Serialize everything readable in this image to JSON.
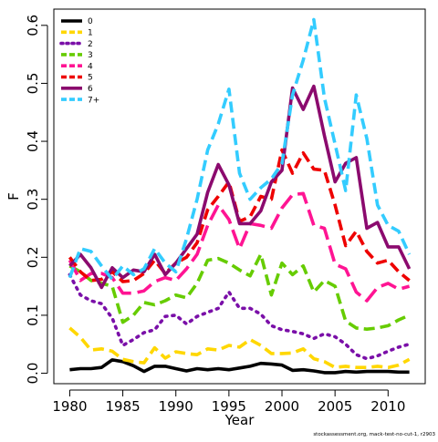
{
  "chart_data": {
    "type": "line",
    "title": "",
    "xlabel": "Year",
    "ylabel": "F",
    "xlim": [
      1978.5,
      2013.5
    ],
    "ylim": [
      -0.018,
      0.628
    ],
    "xticks": [
      1980,
      1985,
      1990,
      1995,
      2000,
      2005,
      2010
    ],
    "xtick_labels": [
      "1980",
      "1985",
      "1990",
      "1995",
      "2000",
      "2005",
      "2010"
    ],
    "yticks": [
      0.0,
      0.1,
      0.2,
      0.3,
      0.4,
      0.5,
      0.6
    ],
    "ytick_labels": [
      "0.0",
      "0.1",
      "0.2",
      "0.3",
      "0.4",
      "0.5",
      "0.6"
    ],
    "grid": false,
    "legend_position": "top-left",
    "credit": "stockassessment.org, mack-test-no-cut-1, r2903",
    "x": [
      1980,
      1981,
      1982,
      1983,
      1984,
      1985,
      1986,
      1987,
      1988,
      1989,
      1990,
      1991,
      1992,
      1993,
      1994,
      1995,
      1996,
      1997,
      1998,
      1999,
      2000,
      2001,
      2002,
      2003,
      2004,
      2005,
      2006,
      2007,
      2008,
      2009,
      2010,
      2011,
      2012
    ],
    "series": [
      {
        "name": "0",
        "color": "#000000",
        "dash": "solid",
        "values": [
          0.006,
          0.008,
          0.008,
          0.01,
          0.023,
          0.02,
          0.013,
          0.003,
          0.012,
          0.012,
          0.008,
          0.004,
          0.008,
          0.006,
          0.008,
          0.006,
          0.009,
          0.012,
          0.017,
          0.016,
          0.014,
          0.005,
          0.006,
          0.004,
          0.001,
          0.001,
          0.003,
          0.002,
          0.003,
          0.003,
          0.003,
          0.002,
          0.002
        ]
      },
      {
        "name": "1",
        "color": "#FFD700",
        "dash": "dash",
        "values": [
          0.078,
          0.062,
          0.04,
          0.042,
          0.038,
          0.024,
          0.02,
          0.018,
          0.044,
          0.026,
          0.037,
          0.034,
          0.032,
          0.042,
          0.04,
          0.048,
          0.045,
          0.058,
          0.048,
          0.034,
          0.034,
          0.035,
          0.042,
          0.025,
          0.02,
          0.01,
          0.012,
          0.01,
          0.01,
          0.012,
          0.01,
          0.014,
          0.024
        ]
      },
      {
        "name": "2",
        "color": "#7A0FA8",
        "dash": "dot",
        "values": [
          0.17,
          0.135,
          0.125,
          0.12,
          0.095,
          0.048,
          0.058,
          0.07,
          0.075,
          0.098,
          0.1,
          0.085,
          0.098,
          0.105,
          0.112,
          0.14,
          0.112,
          0.112,
          0.102,
          0.082,
          0.075,
          0.072,
          0.068,
          0.06,
          0.068,
          0.063,
          0.05,
          0.032,
          0.025,
          0.03,
          0.038,
          0.045,
          0.05
        ]
      },
      {
        "name": "3",
        "color": "#66CC00",
        "dash": "dash",
        "values": [
          0.185,
          0.175,
          0.16,
          0.155,
          0.15,
          0.088,
          0.1,
          0.122,
          0.118,
          0.125,
          0.135,
          0.13,
          0.155,
          0.195,
          0.198,
          0.19,
          0.178,
          0.168,
          0.205,
          0.135,
          0.19,
          0.17,
          0.185,
          0.14,
          0.16,
          0.15,
          0.09,
          0.078,
          0.076,
          0.078,
          0.082,
          0.092,
          0.1
        ]
      },
      {
        "name": "4",
        "color": "#FF1493",
        "dash": "longdash",
        "values": [
          0.195,
          0.16,
          0.172,
          0.172,
          0.165,
          0.138,
          0.138,
          0.142,
          0.158,
          0.165,
          0.16,
          0.18,
          0.205,
          0.255,
          0.29,
          0.265,
          0.215,
          0.258,
          0.255,
          0.25,
          0.285,
          0.308,
          0.31,
          0.255,
          0.25,
          0.188,
          0.18,
          0.14,
          0.125,
          0.148,
          0.155,
          0.145,
          0.15
        ]
      },
      {
        "name": "5",
        "color": "#EE0000",
        "dash": "dash",
        "values": [
          0.2,
          0.175,
          0.16,
          0.162,
          0.175,
          0.158,
          0.16,
          0.172,
          0.195,
          0.172,
          0.19,
          0.2,
          0.225,
          0.282,
          0.305,
          0.33,
          0.262,
          0.27,
          0.305,
          0.3,
          0.385,
          0.345,
          0.38,
          0.352,
          0.35,
          0.29,
          0.22,
          0.245,
          0.21,
          0.19,
          0.195,
          0.175,
          0.16
        ]
      },
      {
        "name": "6",
        "color": "#8B0A6E",
        "dash": "solid",
        "values": [
          0.185,
          0.205,
          0.182,
          0.148,
          0.182,
          0.165,
          0.178,
          0.175,
          0.205,
          0.17,
          0.19,
          0.215,
          0.24,
          0.312,
          0.36,
          0.325,
          0.258,
          0.258,
          0.28,
          0.33,
          0.35,
          0.492,
          0.455,
          0.495,
          0.41,
          0.33,
          0.362,
          0.372,
          0.25,
          0.26,
          0.218,
          0.218,
          0.18
        ]
      },
      {
        "name": "7+",
        "color": "#33CCFF",
        "dash": "dash",
        "values": [
          0.165,
          0.215,
          0.21,
          0.185,
          0.162,
          0.185,
          0.17,
          0.18,
          0.215,
          0.19,
          0.175,
          0.232,
          0.3,
          0.385,
          0.43,
          0.49,
          0.345,
          0.3,
          0.32,
          0.335,
          0.362,
          0.48,
          0.54,
          0.61,
          0.475,
          0.395,
          0.315,
          0.48,
          0.405,
          0.29,
          0.255,
          0.245,
          0.205
        ]
      }
    ]
  }
}
